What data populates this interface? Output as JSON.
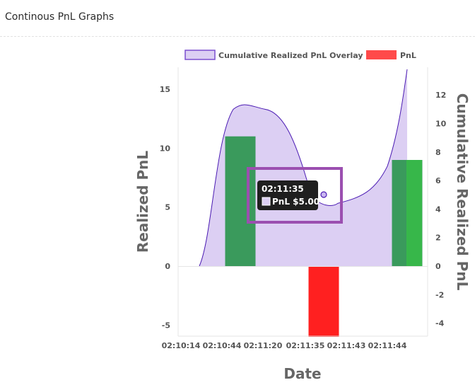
{
  "panel": {
    "title": "Continous PnL Graphs"
  },
  "colors": {
    "positive": "#3a9a5c",
    "positive_last": "#37b74a",
    "negative": "#ff2020",
    "area_fill": "#dccff3",
    "area_line": "#4b1bb3",
    "legend_overlay_fill": "#dccff3",
    "legend_overlay_border": "#7b4fcf",
    "legend_pnl": "#ff4a4a",
    "tooltip_bg": "#1f1f1f",
    "highlight": "#9b4fb0"
  },
  "chart_data": {
    "type": "bar",
    "categories": [
      "02:10:14",
      "02:10:44",
      "02:11:20",
      "02:11:35",
      "02:11:43",
      "02:11:44"
    ],
    "legend": [
      {
        "label": "Cumulative Realized PnL Overlay",
        "kind": "area"
      },
      {
        "label": "PnL",
        "kind": "bar"
      }
    ],
    "legend_position": "top",
    "series": [
      {
        "name": "PnL",
        "type": "bar",
        "axis": "left",
        "values": [
          0,
          11,
          0,
          -6,
          0,
          9
        ]
      },
      {
        "name": "Cumulative Realized PnL Overlay",
        "type": "area",
        "axis": "right",
        "values": [
          0,
          11,
          11,
          5,
          5,
          14
        ]
      }
    ],
    "xlabel": "Date",
    "ylabel": "Realized PnL",
    "y2label": "Cumulative Realized PnL",
    "ylim": [
      -6,
      17
    ],
    "y2lim": [
      -5,
      14.5
    ],
    "yticks": [
      -5,
      0,
      5,
      10,
      15
    ],
    "y2ticks": [
      -4,
      -2,
      0,
      2,
      4,
      6,
      8,
      10,
      12
    ],
    "grid": false,
    "tooltip": {
      "title": "02:11:35",
      "label": "PnL $5.00"
    }
  }
}
